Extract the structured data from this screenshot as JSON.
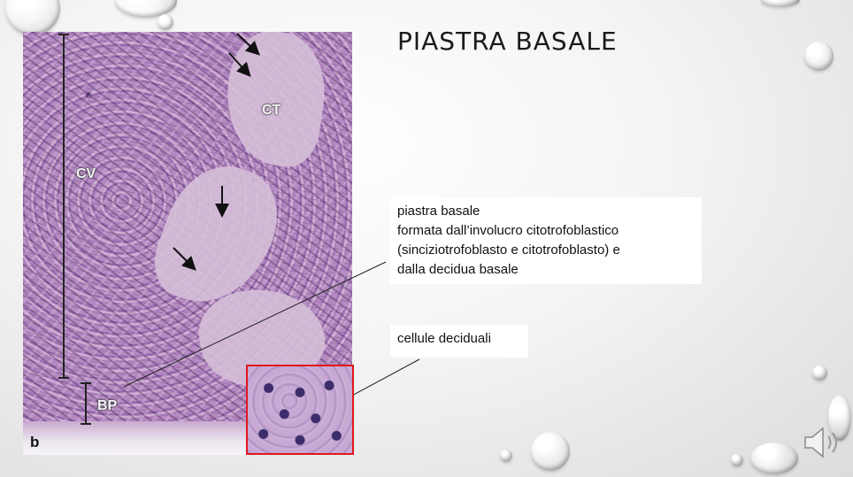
{
  "slide": {
    "title": "PIASTRA BASALE"
  },
  "image": {
    "labels": {
      "ct": "CT",
      "cv": "CV",
      "bp": "BP",
      "panel": "b"
    }
  },
  "callouts": {
    "basal_plate": {
      "lines": [
        "piastra basale",
        "formata dall’involucro citotrofoblastico",
        "(sinciziotrofoblasto e citotrofoblasto) e",
        "dalla decidua basale"
      ]
    },
    "decidual_cells": {
      "text": "cellule deciduali"
    }
  },
  "colors": {
    "inset_border": "#e0181c",
    "title": "#1a1a1a"
  },
  "icons": {
    "audio": "speaker-icon"
  }
}
